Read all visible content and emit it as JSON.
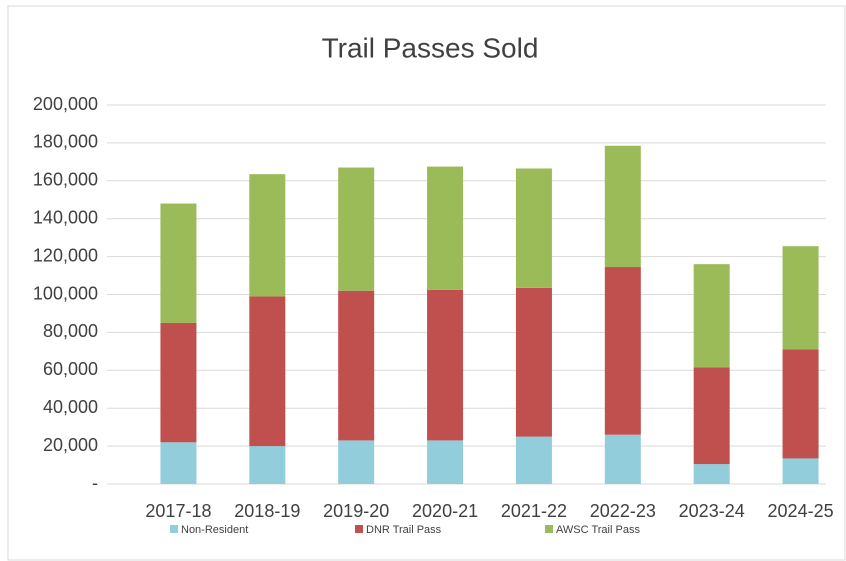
{
  "chart_data": {
    "type": "bar",
    "stacked": true,
    "title": "Trail Passes Sold",
    "categories": [
      "2017-18",
      "2018-19",
      "2019-20",
      "2020-21",
      "2021-22",
      "2022-23",
      "2023-24",
      "2024-25"
    ],
    "series": [
      {
        "name": "Non-Resident",
        "color": "#92cddc",
        "values": [
          22000,
          20000,
          23000,
          23000,
          25000,
          26000,
          10500,
          13500
        ]
      },
      {
        "name": "DNR Trail Pass",
        "color": "#c0504d",
        "values": [
          63000,
          79000,
          79000,
          79500,
          78500,
          88500,
          51000,
          57500
        ]
      },
      {
        "name": "AWSC Trail Pass",
        "color": "#9bbb59",
        "values": [
          63000,
          64500,
          65000,
          65000,
          63000,
          64000,
          54500,
          54500
        ]
      }
    ],
    "ylim": [
      0,
      200000
    ],
    "yticks": [
      {
        "value": 0,
        "label": "-"
      },
      {
        "value": 20000,
        "label": "20,000"
      },
      {
        "value": 40000,
        "label": "40,000"
      },
      {
        "value": 60000,
        "label": "60,000"
      },
      {
        "value": 80000,
        "label": "80,000"
      },
      {
        "value": 100000,
        "label": "100,000"
      },
      {
        "value": 120000,
        "label": "120,000"
      },
      {
        "value": 140000,
        "label": "140,000"
      },
      {
        "value": 160000,
        "label": "160,000"
      },
      {
        "value": 180000,
        "label": "180,000"
      },
      {
        "value": 200000,
        "label": "200,000"
      }
    ],
    "grid": true,
    "legend": "bottom"
  }
}
